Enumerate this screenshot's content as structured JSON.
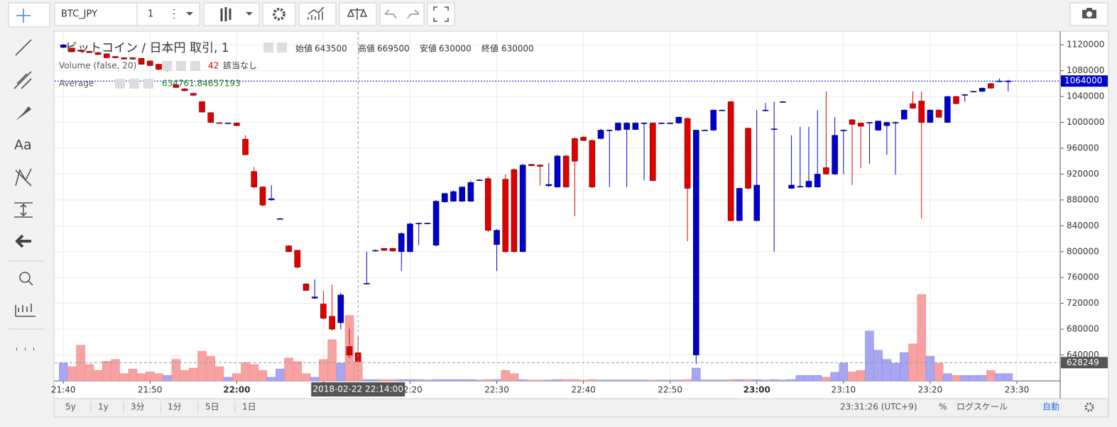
{
  "toolbar": {
    "symbol": "BTC_JPY",
    "interval": "1"
  },
  "left_tools": {
    "text_tool": "Aa"
  },
  "chart_data": {
    "type": "candlestick",
    "title": "ビットコイン / 日本円 取引, 1",
    "open_label": "始値",
    "high_label": "高値",
    "low_label": "安値",
    "close_label": "終値",
    "volume_title": "Volume (false, 20)",
    "volume_status": "該当なし",
    "average_title": "Average",
    "average_value": 634761.84657193,
    "crosshair_time": "2018-02-22 22:14:00",
    "crosshair_price": 628249,
    "up_color": "#0000cc",
    "down_color": "#e00000",
    "up_volume_color": "#a6a6f2",
    "down_volume_color": "#f7a1a1",
    "xlim": [
      "21:39",
      "23:35"
    ],
    "xticks": [
      "21:40",
      "21:50",
      "22:00",
      "22:10",
      "22:20",
      "22:30",
      "22:40",
      "22:50",
      "23:00",
      "23:10",
      "23:20",
      "23:30"
    ],
    "ylim": [
      600000,
      1140000
    ],
    "yticks": [
      640000,
      680000,
      720000,
      760000,
      800000,
      840000,
      880000,
      920000,
      960000,
      1000000,
      1040000,
      1080000,
      1120000
    ],
    "volume_ylim": [
      0,
      763
    ],
    "grid": true,
    "times": [
      "21:40",
      "21:41",
      "21:42",
      "21:43",
      "21:44",
      "21:45",
      "21:46",
      "21:47",
      "21:48",
      "21:49",
      "21:50",
      "21:51",
      "21:52",
      "21:53",
      "21:54",
      "21:55",
      "21:56",
      "21:57",
      "21:58",
      "21:59",
      "22:00",
      "22:01",
      "22:02",
      "22:03",
      "22:04",
      "22:05",
      "22:06",
      "22:07",
      "22:08",
      "22:09",
      "22:10",
      "22:11",
      "22:12",
      "22:13",
      "22:14",
      "22:15",
      "22:16",
      "22:17",
      "22:18",
      "22:19",
      "22:20",
      "22:21",
      "22:22",
      "22:23",
      "22:24",
      "22:25",
      "22:26",
      "22:27",
      "22:28",
      "22:29",
      "22:30",
      "22:31",
      "22:32",
      "22:33",
      "22:34",
      "22:35",
      "22:36",
      "22:37",
      "22:38",
      "22:39",
      "22:40",
      "22:41",
      "22:42",
      "22:43",
      "22:44",
      "22:45",
      "22:46",
      "22:47",
      "22:48",
      "22:49",
      "22:50",
      "22:51",
      "22:52",
      "22:53",
      "22:54",
      "22:55",
      "22:56",
      "22:57",
      "22:58",
      "22:59",
      "23:00",
      "23:01",
      "23:02",
      "23:03",
      "23:04",
      "23:05",
      "23:06",
      "23:07",
      "23:08",
      "23:09",
      "23:10",
      "23:11",
      "23:12",
      "23:13",
      "23:14",
      "23:15",
      "23:16",
      "23:17",
      "23:18",
      "23:19",
      "23:20",
      "23:21",
      "23:22",
      "23:23",
      "23:24",
      "23:25",
      "23:26",
      "23:27",
      "23:28",
      "23:29"
    ],
    "candles": [
      [
        1116000,
        1121000,
        1115000,
        1120000
      ],
      [
        1115000,
        1116000,
        1109000,
        1110000
      ],
      [
        1112000,
        1113000,
        1109000,
        1110000
      ],
      [
        1110000,
        1111000,
        1107000,
        1108000
      ],
      [
        1108000,
        1109000,
        1104000,
        1105000
      ],
      [
        1106000,
        1107000,
        1099000,
        1100000
      ],
      [
        1102000,
        1103000,
        1099000,
        1100000
      ],
      [
        1100000,
        1101000,
        1097000,
        1098000
      ],
      [
        1100000,
        1101000,
        1097000,
        1098000
      ],
      [
        1099000,
        1100000,
        1089000,
        1090000
      ],
      [
        1095000,
        1096000,
        1087000,
        1088000
      ],
      [
        1090000,
        1091000,
        1081000,
        1082000
      ],
      [
        1080000,
        1082000,
        1079000,
        1081000
      ],
      [
        1058000,
        1059000,
        1053000,
        1054000
      ],
      [
        1052000,
        1053000,
        1048000,
        1049000
      ],
      [
        1045000,
        1046000,
        1041000,
        1042000
      ],
      [
        1032000,
        1033000,
        1015000,
        1016000
      ],
      [
        1015000,
        1016000,
        999000,
        1000000
      ],
      [
        999500,
        1000000,
        998000,
        999000
      ],
      [
        999000,
        999000,
        999000,
        999000
      ],
      [
        999000,
        1000000,
        994000,
        995000
      ],
      [
        974000,
        980000,
        949000,
        950000
      ],
      [
        924000,
        931000,
        898000,
        900000
      ],
      [
        900000,
        901000,
        870000,
        872000
      ],
      [
        880000,
        903000,
        879000,
        882000
      ],
      [
        851000,
        852000,
        850000,
        851000
      ],
      [
        809000,
        810000,
        799000,
        800000
      ],
      [
        802000,
        803000,
        774000,
        776000
      ],
      [
        750000,
        751000,
        739000,
        740000
      ],
      [
        728000,
        757000,
        727000,
        730000
      ],
      [
        719000,
        739000,
        695000,
        697000
      ],
      [
        700000,
        749000,
        678000,
        680000
      ],
      [
        690000,
        736000,
        680000,
        733000
      ],
      [
        653000,
        681000,
        635000,
        640000
      ],
      [
        643500,
        669500,
        630000,
        630000
      ],
      [
        750000,
        800000,
        749000,
        751000
      ],
      [
        801000,
        803000,
        800000,
        802000
      ],
      [
        805000,
        806000,
        801000,
        802000
      ],
      [
        805000,
        806000,
        800000,
        801000
      ],
      [
        800000,
        830000,
        770000,
        828000
      ],
      [
        800000,
        845000,
        799000,
        843000
      ],
      [
        843000,
        845000,
        810000,
        844000
      ],
      [
        844000,
        845000,
        843000,
        844000
      ],
      [
        810000,
        880000,
        808000,
        878000
      ],
      [
        877000,
        891000,
        876000,
        890000
      ],
      [
        878000,
        895000,
        877000,
        893000
      ],
      [
        878000,
        901000,
        877000,
        900000
      ],
      [
        878000,
        910000,
        877000,
        907000
      ],
      [
        911000,
        912000,
        910000,
        911000
      ],
      [
        913000,
        916000,
        830000,
        833000
      ],
      [
        811000,
        835000,
        770000,
        833000
      ],
      [
        912000,
        920000,
        798000,
        800000
      ],
      [
        927000,
        929000,
        798000,
        800000
      ],
      [
        800000,
        936000,
        799000,
        934000
      ],
      [
        935000,
        936000,
        932000,
        933000
      ],
      [
        934000,
        935000,
        902000,
        932000
      ],
      [
        902000,
        937000,
        900000,
        904000
      ],
      [
        900000,
        950000,
        899000,
        948000
      ],
      [
        948000,
        950000,
        899000,
        900000
      ],
      [
        975000,
        977000,
        855000,
        940000
      ],
      [
        977000,
        979000,
        971000,
        972000
      ],
      [
        972000,
        974000,
        898000,
        900000
      ],
      [
        975000,
        990000,
        974000,
        988000
      ],
      [
        987000,
        989000,
        900000,
        988000
      ],
      [
        988000,
        1000000,
        987000,
        999000
      ],
      [
        989000,
        1000000,
        900000,
        999000
      ],
      [
        989000,
        1000000,
        988000,
        999000
      ],
      [
        999000,
        1000000,
        910000,
        999000
      ],
      [
        999000,
        1000000,
        909000,
        910000
      ],
      [
        999000,
        1000000,
        998000,
        999000
      ],
      [
        999000,
        1000000,
        998000,
        999000
      ],
      [
        999000,
        1009000,
        998000,
        1008000
      ],
      [
        1006000,
        1008000,
        816000,
        898000
      ],
      [
        640000,
        988000,
        626000,
        988000
      ],
      [
        988000,
        989000,
        987000,
        988000
      ],
      [
        988000,
        1020000,
        987000,
        1019000
      ],
      [
        1019000,
        1020000,
        1018000,
        1019000
      ],
      [
        1032000,
        1033000,
        847000,
        848000
      ],
      [
        848000,
        899000,
        847000,
        898000
      ],
      [
        991000,
        992000,
        897000,
        898000
      ],
      [
        848000,
        1019000,
        847000,
        903000
      ],
      [
        1018000,
        1030000,
        1017000,
        1019000
      ],
      [
        989000,
        1032000,
        800000,
        990000
      ],
      [
        1032000,
        1033000,
        1031000,
        1032000
      ],
      [
        898000,
        980000,
        897000,
        903000
      ],
      [
        900000,
        993000,
        899000,
        901000
      ],
      [
        900000,
        993000,
        899000,
        909000
      ],
      [
        900000,
        1019000,
        899000,
        920000
      ],
      [
        930000,
        1048000,
        919000,
        920000
      ],
      [
        920000,
        1008000,
        919000,
        980000
      ],
      [
        987000,
        989000,
        920000,
        988000
      ],
      [
        1004000,
        1005000,
        903000,
        997000
      ],
      [
        999000,
        1000000,
        929000,
        994000
      ],
      [
        999000,
        1000000,
        936000,
        1000000
      ],
      [
        988000,
        1003000,
        987000,
        1002000
      ],
      [
        995000,
        1001000,
        950000,
        1000000
      ],
      [
        1000000,
        1001000,
        919000,
        1000000
      ],
      [
        1005000,
        1020000,
        1004000,
        1019000
      ],
      [
        1029000,
        1048000,
        1021000,
        1022000
      ],
      [
        1033000,
        1048000,
        851000,
        1000000
      ],
      [
        1000000,
        1020000,
        999000,
        1019000
      ],
      [
        1019000,
        1020000,
        1007000,
        1008000
      ],
      [
        1000000,
        1041000,
        999000,
        1040000
      ],
      [
        1040000,
        1041000,
        1028000,
        1029000
      ],
      [
        1043000,
        1044000,
        1032000,
        1043000
      ],
      [
        1048000,
        1049000,
        1047000,
        1048000
      ],
      [
        1048000,
        1054000,
        1047000,
        1053000
      ],
      [
        1060000,
        1061000,
        1052000,
        1053000
      ],
      [
        1064000,
        1068000,
        1063000,
        1064000
      ],
      [
        1064000,
        1066000,
        1048000,
        1064000
      ]
    ],
    "volumes": [
      39,
      31,
      78,
      36,
      23,
      43,
      47,
      16,
      26,
      16,
      20,
      16,
      12,
      47,
      23,
      28,
      65,
      54,
      31,
      8,
      16,
      40,
      36,
      23,
      8,
      26,
      50,
      42,
      16,
      8,
      47,
      90,
      39,
      143,
      42,
      3,
      3,
      3,
      3,
      3,
      3,
      3,
      2,
      3,
      3,
      3,
      3,
      3,
      2,
      3,
      3,
      23,
      16,
      3,
      2,
      2,
      2,
      3,
      3,
      3,
      2,
      3,
      2,
      2,
      2,
      2,
      2,
      2,
      2,
      2,
      2,
      2,
      3,
      28,
      2,
      2,
      2,
      3,
      3,
      3,
      3,
      2,
      3,
      2,
      3,
      12,
      12,
      12,
      8,
      19,
      39,
      20,
      23,
      109,
      67,
      47,
      39,
      62,
      81,
      189,
      54,
      39,
      16,
      12,
      12,
      12,
      12,
      23,
      16,
      16
    ]
  },
  "bottom_bar": {
    "ranges": [
      "5y",
      "1y",
      "3分",
      "1分",
      "5日",
      "1日"
    ],
    "clock": "23:31:26 (UTC+9)",
    "percent": "%",
    "log_scale": "ログスケール",
    "auto": "自動"
  }
}
